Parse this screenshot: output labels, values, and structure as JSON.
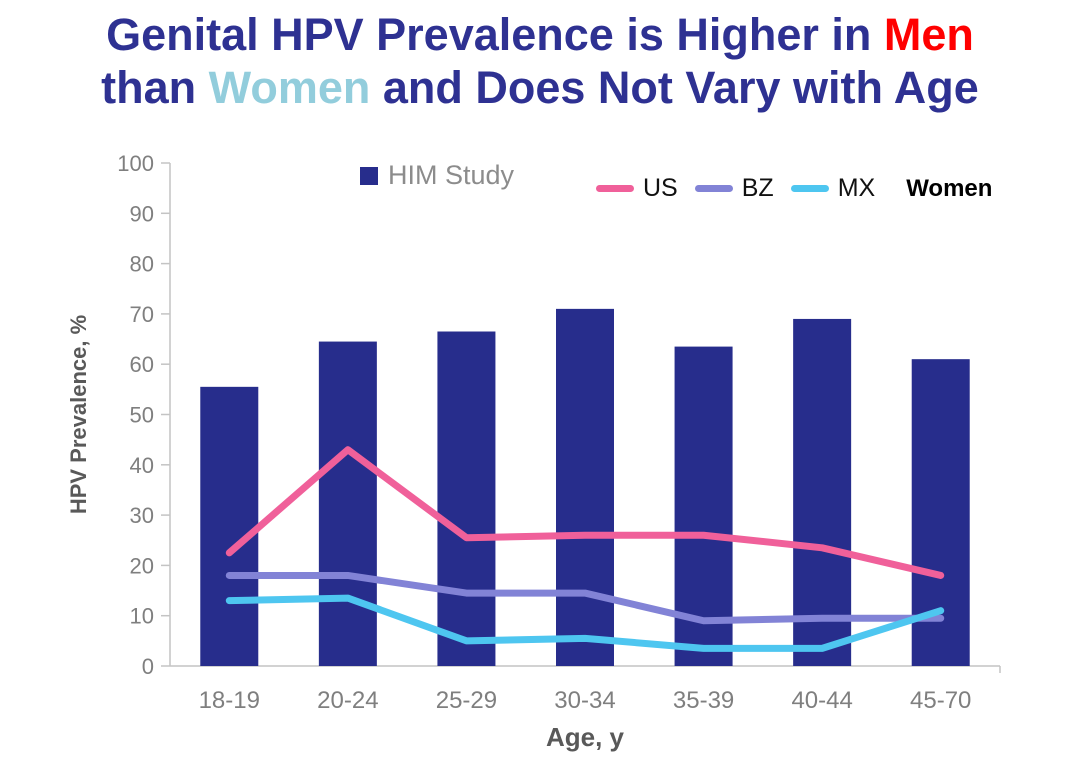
{
  "title": {
    "line1": [
      {
        "text": "Genital HPV Prevalence is Higher in ",
        "color": "#2E3192"
      },
      {
        "text": "Men",
        "color": "#FF0000"
      }
    ],
    "line2": [
      {
        "text": "than ",
        "color": "#2E3192"
      },
      {
        "text": "Women",
        "color": "#92CDDC"
      },
      {
        "text": " and Does Not Vary with Age",
        "color": "#2E3192"
      }
    ]
  },
  "chart_data": {
    "type": "bar",
    "categories": [
      "18-19",
      "20-24",
      "25-29",
      "30-34",
      "35-39",
      "40-44",
      "45-70"
    ],
    "bar_series": {
      "name": "HIM Study",
      "color": "#272D8C",
      "values": [
        55.5,
        64.5,
        66.5,
        71,
        63.5,
        69,
        61
      ]
    },
    "line_series": [
      {
        "name": "US",
        "color": "#F0609A",
        "values": [
          22.5,
          43,
          25.5,
          26,
          26,
          23.5,
          18
        ]
      },
      {
        "name": "BZ",
        "color": "#8283D6",
        "values": [
          18,
          18,
          14.5,
          14.5,
          9,
          9.5,
          9.5
        ]
      },
      {
        "name": "MX",
        "color": "#4EC6F0",
        "values": [
          13,
          13.5,
          5,
          5.5,
          3.5,
          3.5,
          11
        ]
      }
    ],
    "line_group_label": "Women",
    "title": "Genital HPV Prevalence is Higher in Men than Women and Does Not Vary with Age",
    "xlabel": "Age, y",
    "ylabel": "HPV Prevalence, %",
    "ylim": [
      0,
      100
    ],
    "ytick_step": 10,
    "grid": false,
    "legend_position": "top"
  }
}
